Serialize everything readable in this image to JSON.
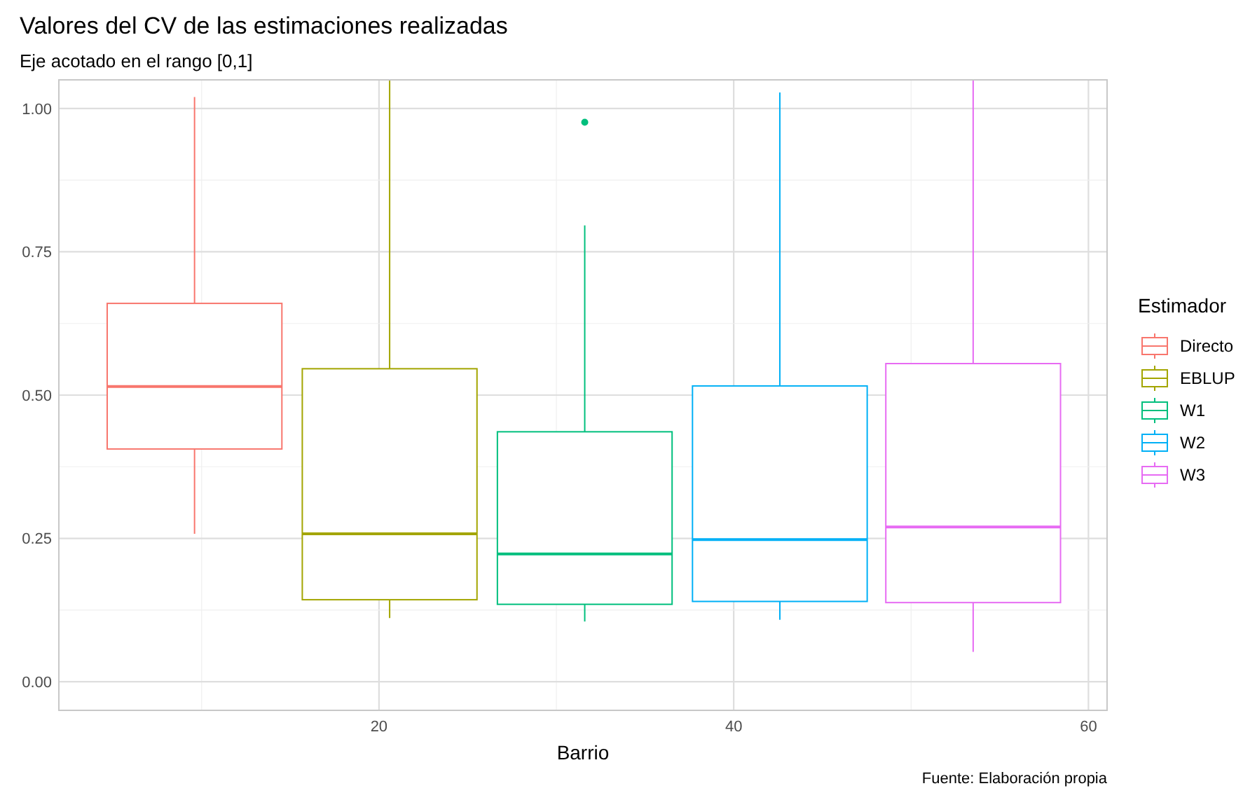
{
  "chart_data": {
    "type": "box",
    "title": "Valores del CV de las estimaciones realizadas",
    "subtitle": "Eje acotado en el rango [0,1]",
    "xlabel": "Barrio",
    "legend_title": "Estimador",
    "legend": "right",
    "grid": true,
    "xlim": [
      1.95,
      61.05
    ],
    "xticks": [
      {
        "value": 10,
        "label": null
      },
      20,
      {
        "value": 30,
        "label": null
      },
      40,
      {
        "value": 50,
        "label": null
      },
      60
    ],
    "ylim": [
      -0.05,
      1.05
    ],
    "yticks": [
      {
        "value": 0,
        "label": "0.00"
      },
      {
        "value": 0.125,
        "label": null
      },
      {
        "value": 0.25,
        "label": "0.25"
      },
      {
        "value": 0.375,
        "label": null
      },
      {
        "value": 0.5,
        "label": "0.50"
      },
      {
        "value": 0.625,
        "label": null
      },
      {
        "value": 0.75,
        "label": "0.75"
      },
      {
        "value": 0.875,
        "label": null
      },
      {
        "value": 1,
        "label": "1.00"
      }
    ],
    "series": [
      {
        "name": "Directo",
        "color": "#f8766d",
        "x": [
          9.6
        ],
        "boxes": [
          {
            "low": 0.258,
            "q1": 0.406,
            "median": 0.515,
            "q3": 0.66,
            "high": 1.02
          }
        ]
      },
      {
        "name": "EBLUP",
        "color": "#a3a500",
        "x": [
          20.6
        ],
        "boxes": [
          {
            "low": 0.111,
            "q1": 0.143,
            "median": 0.258,
            "q3": 0.546,
            "high": 1.05
          }
        ]
      },
      {
        "name": "W1",
        "color": "#00bf7d",
        "x": [
          31.6
        ],
        "boxes": [
          {
            "low": 0.105,
            "q1": 0.135,
            "median": 0.223,
            "q3": 0.436,
            "high": 0.796,
            "outliers": [
              0.976
            ]
          }
        ]
      },
      {
        "name": "W2",
        "color": "#00b0f6",
        "x": [
          42.6
        ],
        "boxes": [
          {
            "low": 0.108,
            "q1": 0.14,
            "median": 0.248,
            "q3": 0.516,
            "high": 1.028
          }
        ]
      },
      {
        "name": "W3",
        "color": "#e76bf3",
        "x": [
          53.5
        ],
        "boxes": [
          {
            "low": 0.052,
            "q1": 0.138,
            "median": 0.27,
            "q3": 0.555,
            "high": 1.05
          }
        ]
      }
    ],
    "annotations": [
      "Fuente: Elaboración propia"
    ]
  }
}
